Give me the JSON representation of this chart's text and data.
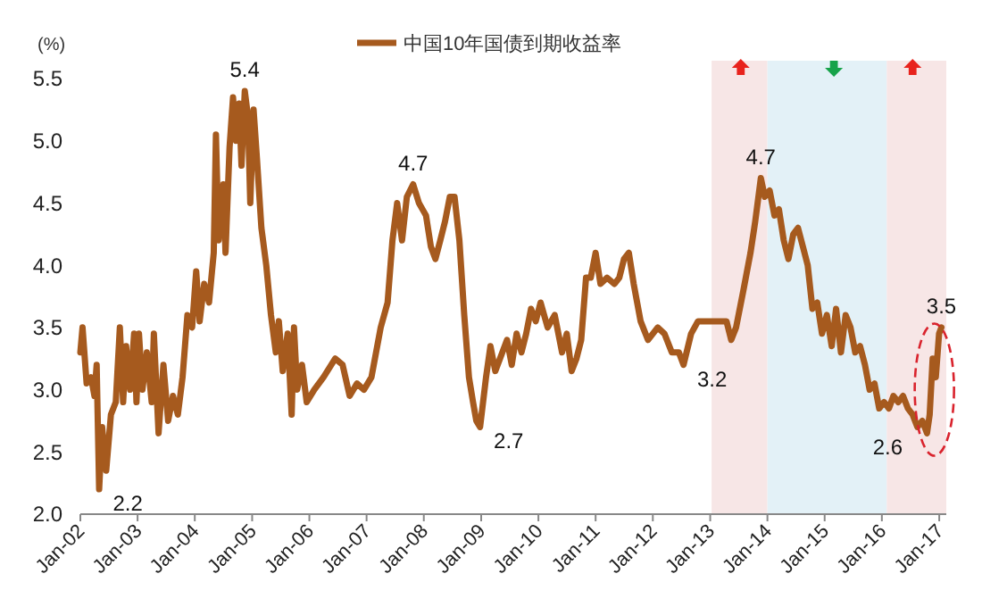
{
  "chart_data": {
    "type": "line",
    "ylabel": "(%)",
    "legend": "top",
    "grid": false,
    "xlim": [
      "2002-01-01",
      "2017-02-15"
    ],
    "xticks": [
      {
        "value": "2002-01-01",
        "label": "Jan-02"
      },
      {
        "value": "2003-01-01",
        "label": "Jan-03"
      },
      {
        "value": "2004-01-01",
        "label": "Jan-04"
      },
      {
        "value": "2005-01-01",
        "label": "Jan-05"
      },
      {
        "value": "2006-01-01",
        "label": "Jan-06"
      },
      {
        "value": "2007-01-01",
        "label": "Jan-07"
      },
      {
        "value": "2008-01-01",
        "label": "Jan-08"
      },
      {
        "value": "2009-01-01",
        "label": "Jan-09"
      },
      {
        "value": "2010-01-01",
        "label": "Jan-10"
      },
      {
        "value": "2011-01-01",
        "label": "Jan-11"
      },
      {
        "value": "2012-01-01",
        "label": "Jan-12"
      },
      {
        "value": "2013-01-01",
        "label": "Jan-13"
      },
      {
        "value": "2014-01-01",
        "label": "Jan-14"
      },
      {
        "value": "2015-01-01",
        "label": "Jan-15"
      },
      {
        "value": "2016-01-01",
        "label": "Jan-16"
      },
      {
        "value": "2017-01-01",
        "label": "Jan-17"
      }
    ],
    "ylim": [
      2,
      5.5
    ],
    "yticks": [
      {
        "value": 2,
        "label": "2.0"
      },
      {
        "value": 2.5,
        "label": "2.5"
      },
      {
        "value": 3,
        "label": "3.0"
      },
      {
        "value": 3.5,
        "label": "3.5"
      },
      {
        "value": 4,
        "label": "4.0"
      },
      {
        "value": 4.5,
        "label": "4.5"
      },
      {
        "value": 5,
        "label": "5.0"
      },
      {
        "value": 5.5,
        "label": "5.5"
      }
    ],
    "bands": [
      {
        "axis": "x",
        "from": "2013-01-10",
        "to": "2014-01-01",
        "color": "#f7e6e6"
      },
      {
        "axis": "x",
        "from": "2014-01-01",
        "to": "2016-02-01",
        "color": "#e3f1f7"
      },
      {
        "axis": "x",
        "from": "2016-02-01",
        "to": "2017-02-15",
        "color": "#f7e6e6"
      }
    ],
    "annotations": [
      {
        "text": "2.2",
        "x": "2002-05-01",
        "y": 2.2
      },
      {
        "text": "5.4",
        "x": "2004-11-15",
        "y": 5.4
      },
      {
        "text": "4.7",
        "x": "2007-10-25",
        "y": 4.65
      },
      {
        "text": "2.7",
        "x": "2008-12-25",
        "y": 2.7
      },
      {
        "text": "3.2",
        "x": "2012-07-15",
        "y": 3.2
      },
      {
        "text": "4.7",
        "x": "2013-11-20",
        "y": 4.7
      },
      {
        "text": "2.6",
        "x": "2016-10-15",
        "y": 2.65
      },
      {
        "text": "3.5",
        "x": "2017-01-15",
        "y": 3.5
      }
    ],
    "series": [
      {
        "name": "中国10年国债到期收益率",
        "color": "#a65a1e",
        "line_style": "solid",
        "marker": "none",
        "x": [
          "2002-01-01",
          "2002-01-15",
          "2002-02-10",
          "2002-03-10",
          "2002-04-01",
          "2002-04-15",
          "2002-05-01",
          "2002-05-20",
          "2002-06-15",
          "2002-07-15",
          "2002-08-15",
          "2002-09-10",
          "2002-10-01",
          "2002-10-20",
          "2002-11-15",
          "2002-12-10",
          "2002-12-25",
          "2003-01-10",
          "2003-02-01",
          "2003-03-01",
          "2003-04-01",
          "2003-04-15",
          "2003-05-15",
          "2003-06-15",
          "2003-07-15",
          "2003-08-15",
          "2003-09-15",
          "2003-10-15",
          "2003-11-15",
          "2003-12-15",
          "2004-01-10",
          "2004-02-01",
          "2004-03-01",
          "2004-04-01",
          "2004-05-01",
          "2004-05-15",
          "2004-06-01",
          "2004-07-01",
          "2004-07-15",
          "2004-08-10",
          "2004-09-01",
          "2004-09-20",
          "2004-10-10",
          "2004-10-25",
          "2004-11-15",
          "2004-12-05",
          "2004-12-20",
          "2005-01-10",
          "2005-02-01",
          "2005-03-01",
          "2005-04-01",
          "2005-05-01",
          "2005-06-01",
          "2005-06-20",
          "2005-07-15",
          "2005-08-15",
          "2005-09-10",
          "2005-09-25",
          "2005-10-15",
          "2005-11-15",
          "2005-12-15",
          "2006-02-01",
          "2006-04-01",
          "2006-06-15",
          "2006-08-01",
          "2006-09-15",
          "2006-11-01",
          "2006-12-15",
          "2007-02-01",
          "2007-04-01",
          "2007-05-15",
          "2007-06-15",
          "2007-07-15",
          "2007-08-15",
          "2007-09-15",
          "2007-10-25",
          "2007-12-01",
          "2008-01-15",
          "2008-02-15",
          "2008-03-15",
          "2008-04-15",
          "2008-05-15",
          "2008-06-15",
          "2008-07-15",
          "2008-08-15",
          "2008-09-15",
          "2008-10-15",
          "2008-11-10",
          "2008-12-01",
          "2008-12-25",
          "2009-02-01",
          "2009-03-01",
          "2009-04-01",
          "2009-05-01",
          "2009-06-15",
          "2009-07-15",
          "2009-08-15",
          "2009-09-15",
          "2009-10-15",
          "2009-11-15",
          "2009-12-15",
          "2010-01-15",
          "2010-03-01",
          "2010-04-15",
          "2010-06-01",
          "2010-07-01",
          "2010-08-01",
          "2010-09-01",
          "2010-10-01",
          "2010-11-01",
          "2010-12-01",
          "2011-01-01",
          "2011-02-01",
          "2011-03-15",
          "2011-05-01",
          "2011-06-01",
          "2011-07-01",
          "2011-08-01",
          "2011-09-01",
          "2011-10-15",
          "2011-12-01",
          "2012-02-01",
          "2012-03-15",
          "2012-05-01",
          "2012-06-15",
          "2012-07-15",
          "2012-09-01",
          "2012-10-15",
          "2012-12-01",
          "2013-02-01",
          "2013-04-15",
          "2013-05-15",
          "2013-06-15",
          "2013-08-01",
          "2013-09-15",
          "2013-10-15",
          "2013-11-20",
          "2013-12-15",
          "2014-01-15",
          "2014-02-15",
          "2014-03-15",
          "2014-04-15",
          "2014-05-15",
          "2014-06-15",
          "2014-07-15",
          "2014-08-15",
          "2014-09-15",
          "2014-10-15",
          "2014-11-15",
          "2014-12-15",
          "2015-01-15",
          "2015-02-15",
          "2015-03-15",
          "2015-04-15",
          "2015-05-15",
          "2015-06-15",
          "2015-07-15",
          "2015-08-15",
          "2015-09-15",
          "2015-10-15",
          "2015-11-15",
          "2015-12-15",
          "2016-01-15",
          "2016-02-15",
          "2016-03-15",
          "2016-04-15",
          "2016-05-15",
          "2016-06-15",
          "2016-07-15",
          "2016-08-15",
          "2016-09-15",
          "2016-10-15",
          "2016-11-01",
          "2016-11-20",
          "2016-12-10",
          "2016-12-31",
          "2017-01-15"
        ],
        "values": [
          3.3,
          3.5,
          3.05,
          3.1,
          2.95,
          3.2,
          2.2,
          2.7,
          2.35,
          2.8,
          2.9,
          3.5,
          2.9,
          3.35,
          3.0,
          3.45,
          2.9,
          3.45,
          3.0,
          3.3,
          2.9,
          3.45,
          2.65,
          3.2,
          2.75,
          2.95,
          2.8,
          3.1,
          3.6,
          3.5,
          3.95,
          3.55,
          3.85,
          3.7,
          4.1,
          5.05,
          4.2,
          4.65,
          4.1,
          4.95,
          5.35,
          5.0,
          5.3,
          4.8,
          5.4,
          5.2,
          4.5,
          5.25,
          4.85,
          4.3,
          4.0,
          3.6,
          3.3,
          3.55,
          3.15,
          3.45,
          2.8,
          3.5,
          3.0,
          3.2,
          2.9,
          3.0,
          3.1,
          3.25,
          3.2,
          2.95,
          3.05,
          3.0,
          3.1,
          3.5,
          3.7,
          4.2,
          4.5,
          4.2,
          4.55,
          4.65,
          4.5,
          4.4,
          4.15,
          4.05,
          4.2,
          4.35,
          4.55,
          4.55,
          4.2,
          3.6,
          3.1,
          2.9,
          2.75,
          2.7,
          3.1,
          3.35,
          3.15,
          3.25,
          3.4,
          3.2,
          3.45,
          3.3,
          3.45,
          3.65,
          3.55,
          3.7,
          3.5,
          3.6,
          3.3,
          3.45,
          3.15,
          3.25,
          3.4,
          3.9,
          3.9,
          4.1,
          3.85,
          3.9,
          3.85,
          3.9,
          4.05,
          4.1,
          3.85,
          3.55,
          3.4,
          3.5,
          3.45,
          3.3,
          3.3,
          3.2,
          3.45,
          3.55,
          3.55,
          3.55,
          3.55,
          3.4,
          3.5,
          3.8,
          4.1,
          4.35,
          4.7,
          4.55,
          4.6,
          4.4,
          4.45,
          4.2,
          4.05,
          4.25,
          4.3,
          4.15,
          4.0,
          3.65,
          3.7,
          3.45,
          3.6,
          3.35,
          3.65,
          3.3,
          3.6,
          3.5,
          3.3,
          3.35,
          3.2,
          3.0,
          3.05,
          2.85,
          2.9,
          2.85,
          2.95,
          2.9,
          2.95,
          2.85,
          2.8,
          2.7,
          2.75,
          2.65,
          2.8,
          3.25,
          3.1,
          3.45,
          3.5
        ]
      }
    ]
  }
}
